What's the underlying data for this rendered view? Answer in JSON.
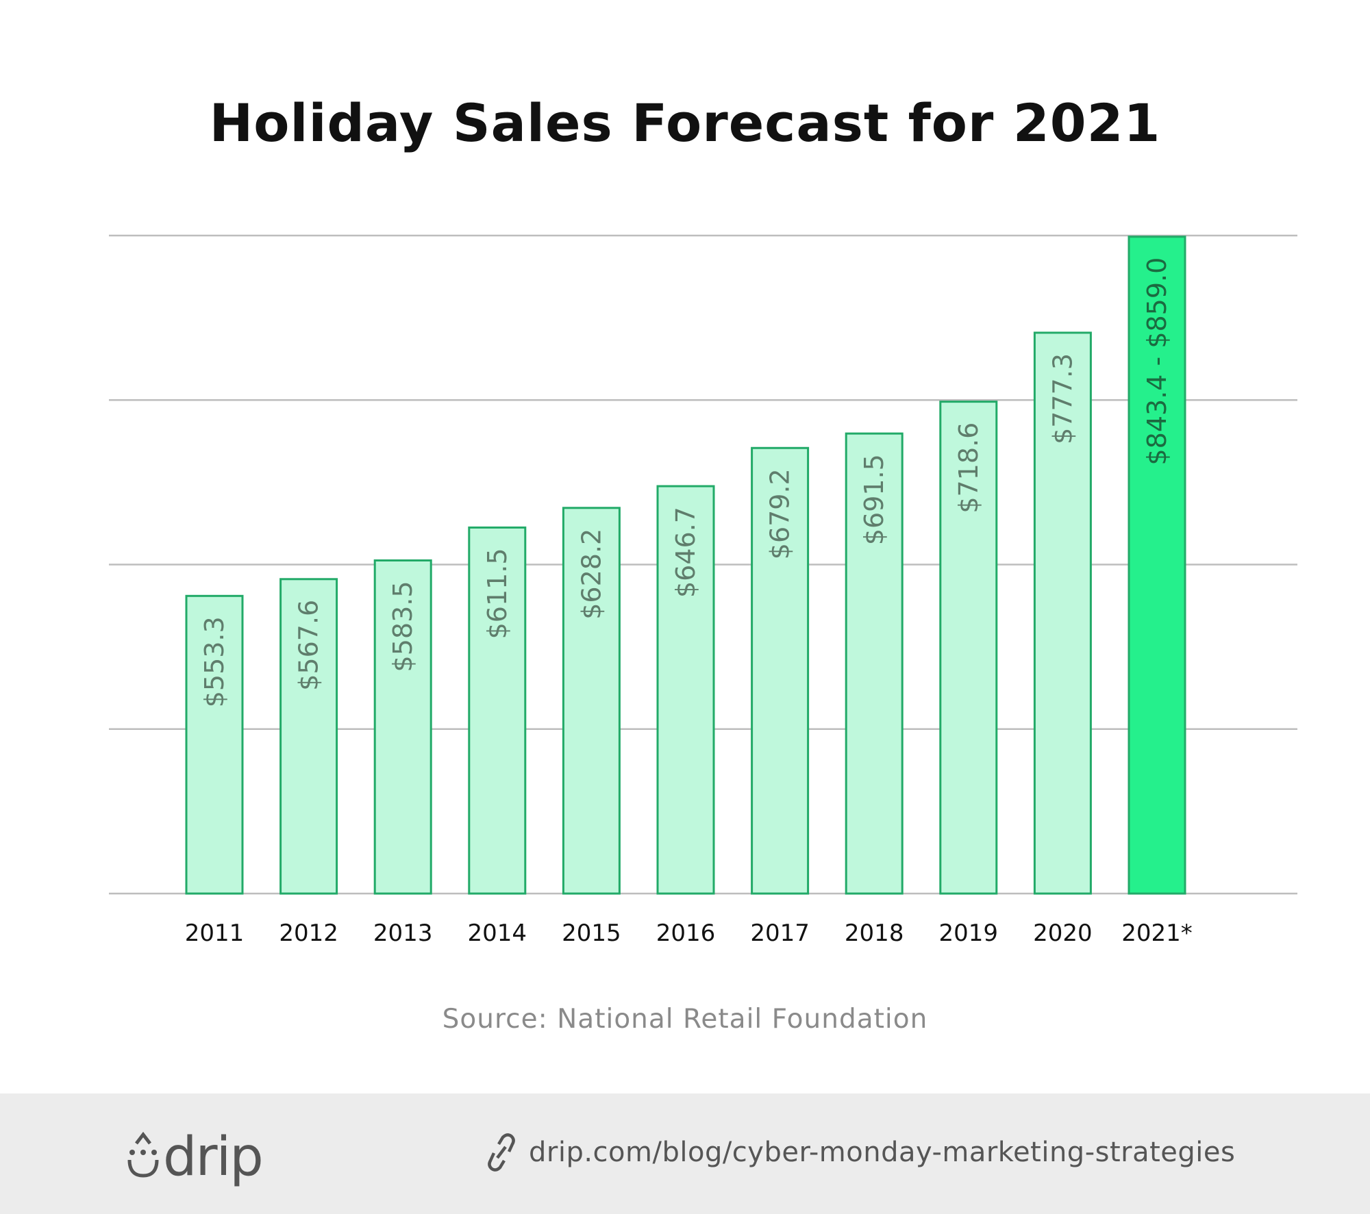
{
  "chart_data": {
    "type": "bar",
    "title": "Holiday Sales Forecast for 2021",
    "categories": [
      "2011",
      "2012",
      "2013",
      "2014",
      "2015",
      "2016",
      "2017",
      "2018",
      "2019",
      "2020",
      "2021*"
    ],
    "values": [
      553.3,
      567.6,
      583.5,
      611.5,
      628.2,
      646.7,
      679.2,
      691.5,
      718.6,
      777.3,
      859.0
    ],
    "data_labels": [
      "$553.3",
      "$567.6",
      "$583.5",
      "$611.5",
      "$628.2",
      "$646.7",
      "$679.2",
      "$691.5",
      "$718.6",
      "$777.3",
      "$843.4 - $859.0"
    ],
    "forecast_range": {
      "category": "2021*",
      "low": 843.4,
      "high": 859.0
    },
    "xlabel": "",
    "ylabel": "",
    "ylim": [
      300,
      860
    ],
    "grid": true,
    "colors": {
      "bar": "#bff8dc",
      "bar_border": "#22aa68",
      "highlight_bar": "#25f08c",
      "label": "#5f7d6c",
      "highlight_label": "#1b6a40",
      "grid": "#bdbdbd"
    }
  },
  "source": "Source: National Retail Foundation",
  "footer": {
    "logo_text": "drip",
    "link_icon": "link-icon",
    "url": "drip.com/blog/cyber-monday-marketing-strategies"
  }
}
